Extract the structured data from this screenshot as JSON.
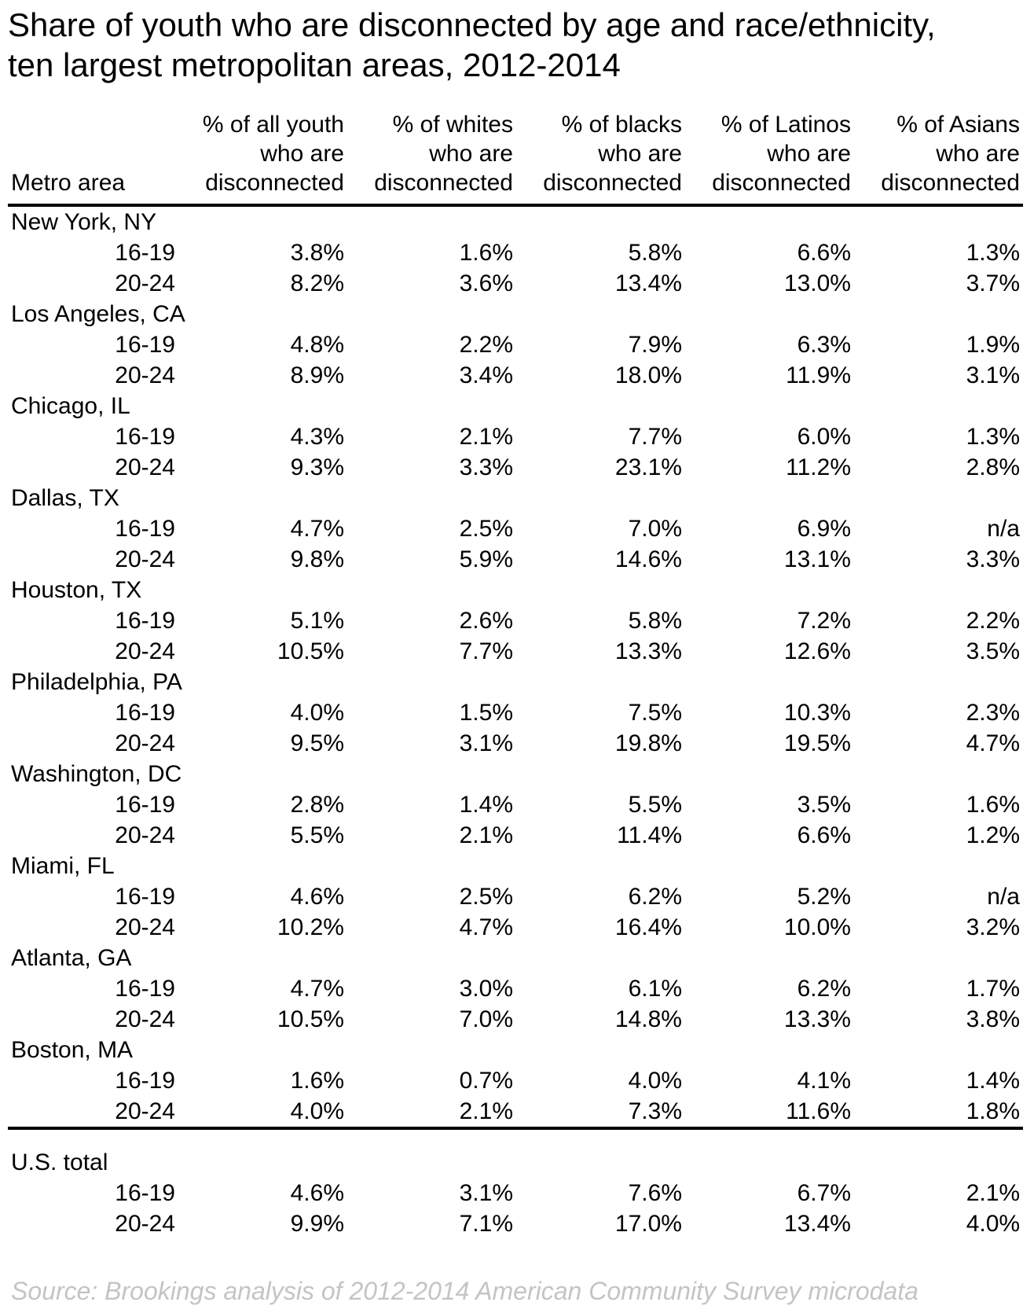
{
  "title_lines": [
    "Share of youth who are disconnected by age and race/ethnicity,",
    "ten largest metropolitan areas, 2012-2014"
  ],
  "colors": {
    "text": "#000000",
    "rule": "#000000",
    "source_text": "#c4c4c4"
  },
  "chart_data": {
    "type": "table",
    "title": "Share of youth who are disconnected by age and race/ethnicity, ten largest metropolitan areas, 2012-2014",
    "first_column_header": "Metro area",
    "column_headers": [
      [
        "% of all youth",
        "who are",
        "disconnected"
      ],
      [
        "% of whites",
        "who are",
        "disconnected"
      ],
      [
        "% of blacks",
        "who are",
        "disconnected"
      ],
      [
        "% of Latinos",
        "who are",
        "disconnected"
      ],
      [
        "% of Asians",
        "who are",
        "disconnected"
      ]
    ],
    "age_groups": [
      "16-19",
      "20-24"
    ],
    "groups": [
      {
        "metro": "New York, NY",
        "rows": [
          {
            "age": "16-19",
            "values": [
              "3.8%",
              "1.6%",
              "5.8%",
              "6.6%",
              "1.3%"
            ]
          },
          {
            "age": "20-24",
            "values": [
              "8.2%",
              "3.6%",
              "13.4%",
              "13.0%",
              "3.7%"
            ]
          }
        ]
      },
      {
        "metro": "Los Angeles, CA",
        "rows": [
          {
            "age": "16-19",
            "values": [
              "4.8%",
              "2.2%",
              "7.9%",
              "6.3%",
              "1.9%"
            ]
          },
          {
            "age": "20-24",
            "values": [
              "8.9%",
              "3.4%",
              "18.0%",
              "11.9%",
              "3.1%"
            ]
          }
        ]
      },
      {
        "metro": "Chicago, IL",
        "rows": [
          {
            "age": "16-19",
            "values": [
              "4.3%",
              "2.1%",
              "7.7%",
              "6.0%",
              "1.3%"
            ]
          },
          {
            "age": "20-24",
            "values": [
              "9.3%",
              "3.3%",
              "23.1%",
              "11.2%",
              "2.8%"
            ]
          }
        ]
      },
      {
        "metro": "Dallas, TX",
        "rows": [
          {
            "age": "16-19",
            "values": [
              "4.7%",
              "2.5%",
              "7.0%",
              "6.9%",
              "n/a"
            ]
          },
          {
            "age": "20-24",
            "values": [
              "9.8%",
              "5.9%",
              "14.6%",
              "13.1%",
              "3.3%"
            ]
          }
        ]
      },
      {
        "metro": "Houston, TX",
        "rows": [
          {
            "age": "16-19",
            "values": [
              "5.1%",
              "2.6%",
              "5.8%",
              "7.2%",
              "2.2%"
            ]
          },
          {
            "age": "20-24",
            "values": [
              "10.5%",
              "7.7%",
              "13.3%",
              "12.6%",
              "3.5%"
            ]
          }
        ]
      },
      {
        "metro": "Philadelphia, PA",
        "rows": [
          {
            "age": "16-19",
            "values": [
              "4.0%",
              "1.5%",
              "7.5%",
              "10.3%",
              "2.3%"
            ]
          },
          {
            "age": "20-24",
            "values": [
              "9.5%",
              "3.1%",
              "19.8%",
              "19.5%",
              "4.7%"
            ]
          }
        ]
      },
      {
        "metro": "Washington, DC",
        "rows": [
          {
            "age": "16-19",
            "values": [
              "2.8%",
              "1.4%",
              "5.5%",
              "3.5%",
              "1.6%"
            ]
          },
          {
            "age": "20-24",
            "values": [
              "5.5%",
              "2.1%",
              "11.4%",
              "6.6%",
              "1.2%"
            ]
          }
        ]
      },
      {
        "metro": "Miami, FL",
        "rows": [
          {
            "age": "16-19",
            "values": [
              "4.6%",
              "2.5%",
              "6.2%",
              "5.2%",
              "n/a"
            ]
          },
          {
            "age": "20-24",
            "values": [
              "10.2%",
              "4.7%",
              "16.4%",
              "10.0%",
              "3.2%"
            ]
          }
        ]
      },
      {
        "metro": "Atlanta, GA",
        "rows": [
          {
            "age": "16-19",
            "values": [
              "4.7%",
              "3.0%",
              "6.1%",
              "6.2%",
              "1.7%"
            ]
          },
          {
            "age": "20-24",
            "values": [
              "10.5%",
              "7.0%",
              "14.8%",
              "13.3%",
              "3.8%"
            ]
          }
        ]
      },
      {
        "metro": "Boston, MA",
        "rows": [
          {
            "age": "16-19",
            "values": [
              "1.6%",
              "0.7%",
              "4.0%",
              "4.1%",
              "1.4%"
            ]
          },
          {
            "age": "20-24",
            "values": [
              "4.0%",
              "2.1%",
              "7.3%",
              "11.6%",
              "1.8%"
            ]
          }
        ]
      }
    ],
    "us_total": {
      "metro": "U.S. total",
      "rows": [
        {
          "age": "16-19",
          "values": [
            "4.6%",
            "3.1%",
            "7.6%",
            "6.7%",
            "2.1%"
          ]
        },
        {
          "age": "20-24",
          "values": [
            "9.9%",
            "7.1%",
            "17.0%",
            "13.4%",
            "4.0%"
          ]
        }
      ]
    },
    "source": "Source: Brookings analysis of 2012-2014 American Community Survey microdata"
  }
}
